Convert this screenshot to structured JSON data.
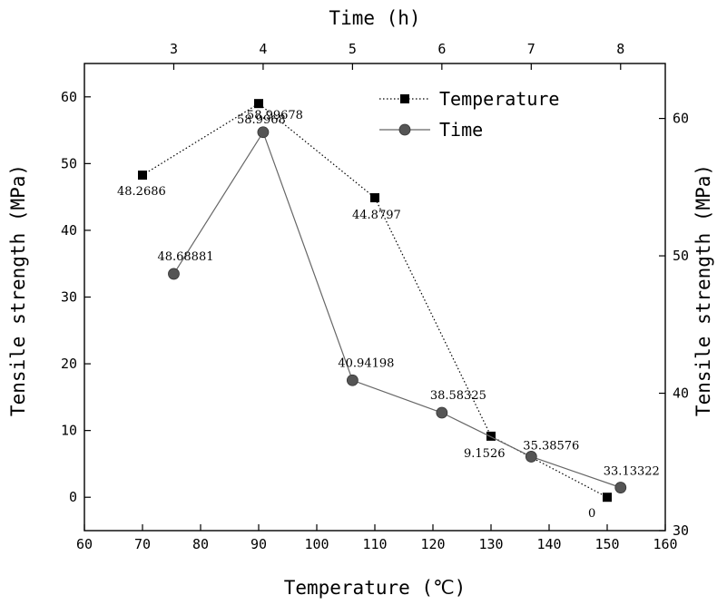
{
  "chart_data": {
    "type": "line",
    "bottom_axis": {
      "label": "Temperature (℃)",
      "range": [
        60,
        160
      ],
      "ticks": [
        60,
        70,
        80,
        90,
        100,
        110,
        120,
        130,
        140,
        150,
        160
      ]
    },
    "top_axis": {
      "label": "Time (h)",
      "range": [
        2.0,
        8.5
      ],
      "ticks": [
        3,
        4,
        5,
        6,
        7,
        8
      ]
    },
    "left_axis": {
      "label": "Tensile strength (MPa)",
      "range": [
        -5,
        65
      ],
      "ticks": [
        0,
        10,
        20,
        30,
        40,
        50,
        60
      ]
    },
    "right_axis": {
      "label": "Tensile strength (MPa)",
      "range": [
        30,
        64
      ],
      "ticks": [
        30,
        40,
        50,
        60
      ]
    },
    "legend": {
      "placement": "top-right"
    },
    "series": [
      {
        "name": "Temperature",
        "x_axis": "bottom",
        "y_axis": "left",
        "marker": "square",
        "line_style": "dotted",
        "color": "#000000",
        "points": [
          {
            "x": 70,
            "y": 48.2686,
            "label": "48.2686"
          },
          {
            "x": 90,
            "y": 58.9968,
            "label": "58.9968"
          },
          {
            "x": 110,
            "y": 44.8797,
            "label": "44.8797"
          },
          {
            "x": 130,
            "y": 9.1526,
            "label": "9.1526"
          },
          {
            "x": 150,
            "y": 0,
            "label": "0"
          }
        ]
      },
      {
        "name": "Time",
        "x_axis": "top",
        "y_axis": "right",
        "marker": "circle",
        "line_style": "solid",
        "color": "#555555",
        "points": [
          {
            "x": 3,
            "y": 48.68881,
            "label": "48.68881"
          },
          {
            "x": 4,
            "y": 58.99678,
            "label": "58.99678"
          },
          {
            "x": 5,
            "y": 40.94198,
            "label": "40.94198"
          },
          {
            "x": 6,
            "y": 38.58325,
            "label": "38.58325"
          },
          {
            "x": 7,
            "y": 35.38576,
            "label": "35.38576"
          },
          {
            "x": 8,
            "y": 33.13322,
            "label": "33.13322"
          }
        ]
      }
    ]
  }
}
